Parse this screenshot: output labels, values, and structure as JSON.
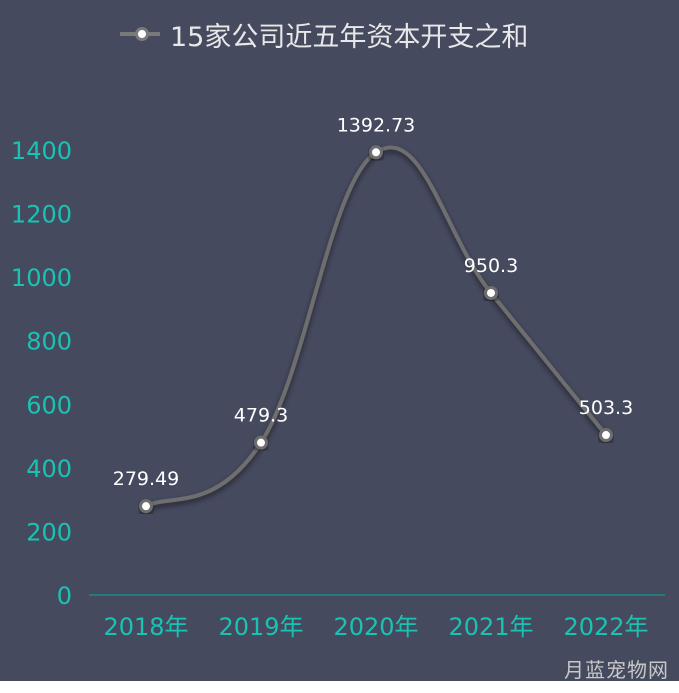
{
  "chart_data": {
    "type": "line",
    "smooth": true,
    "categories": [
      "2018年",
      "2019年",
      "2020年",
      "2021年",
      "2022年"
    ],
    "series": [
      {
        "name": "15家公司近五年资本开支之和",
        "values": [
          279.49,
          479.3,
          1392.73,
          950.3,
          503.3
        ],
        "data_labels": [
          "279.49",
          "479.3",
          "1392.73",
          "950.3",
          "503.3"
        ]
      }
    ],
    "y_ticks": [
      "0",
      "200",
      "400",
      "600",
      "800",
      "1000",
      "1200",
      "1400"
    ],
    "ylim": [
      0,
      1400
    ],
    "grid": false,
    "legend_position": "top-center",
    "colors": {
      "background": "#464a5f",
      "line": "#6e6e6e",
      "marker_fill": "#ffffff",
      "axis_text": "#19c3b3",
      "axis_line": "#1a8a85",
      "label_text": "#ffffff",
      "legend_text": "#e8e8e8"
    }
  },
  "watermark": "月蓝宠物网"
}
